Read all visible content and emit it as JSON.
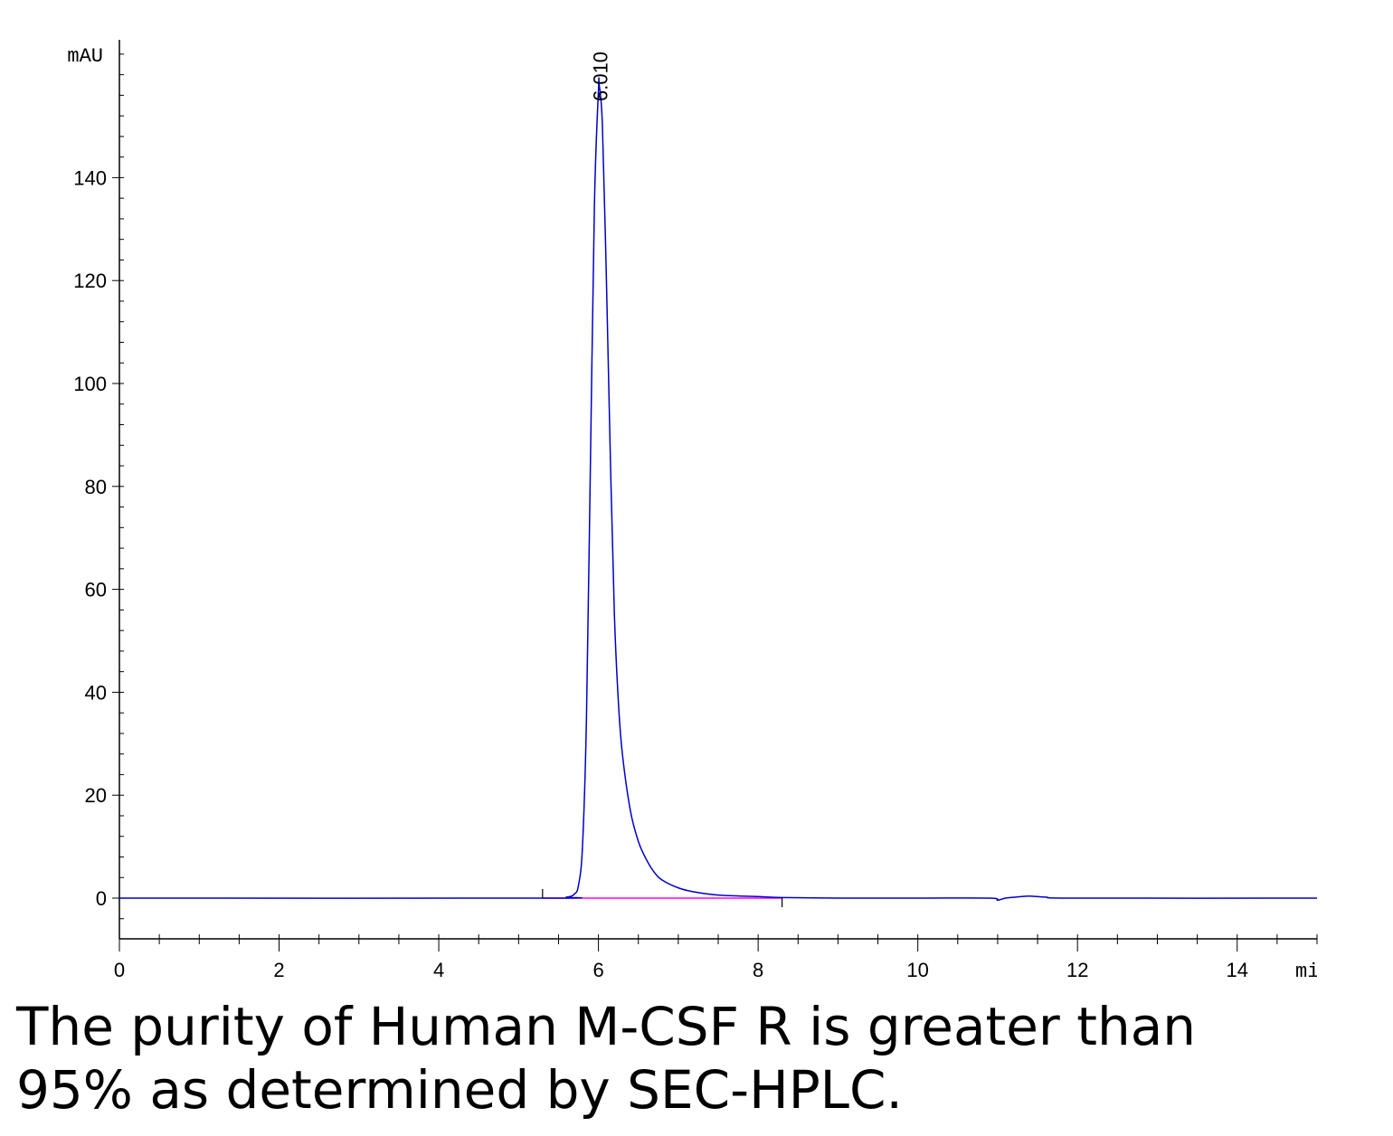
{
  "chart_data": {
    "type": "line",
    "y_unit_label": "mAU",
    "x_unit_label": "min",
    "xlim": [
      0,
      15
    ],
    "ylim": [
      -8,
      167
    ],
    "x_ticks": [
      0,
      2,
      4,
      6,
      8,
      10,
      12,
      14
    ],
    "y_ticks": [
      0,
      20,
      40,
      60,
      80,
      100,
      120,
      140
    ],
    "x_tick_labels": [
      "0",
      "2",
      "4",
      "6",
      "8",
      "10",
      "12",
      "14"
    ],
    "y_tick_labels": [
      "0",
      "20",
      "40",
      "60",
      "80",
      "100",
      "120",
      "140"
    ],
    "grid": false,
    "series": [
      {
        "color": "#0000cc",
        "x": [
          0,
          5.3,
          5.6,
          5.7,
          5.75,
          5.8,
          5.85,
          5.9,
          5.95,
          6.0,
          6.01,
          6.05,
          6.1,
          6.15,
          6.2,
          6.25,
          6.3,
          6.4,
          6.5,
          6.6,
          6.7,
          6.8,
          7.0,
          7.2,
          7.5,
          8.0,
          8.3,
          9.0,
          10.0,
          10.9,
          11.0,
          11.1,
          11.3,
          11.4,
          11.6,
          12.0,
          15.0
        ],
        "y": [
          0,
          0,
          0.2,
          0.8,
          2.5,
          10,
          35,
          85,
          135,
          157,
          158,
          150,
          120,
          85,
          55,
          38,
          28,
          17,
          11,
          7.5,
          5,
          3.5,
          2,
          1.2,
          0.6,
          0.3,
          0.1,
          0,
          0,
          0,
          -0.4,
          0,
          0.3,
          0.4,
          0.2,
          0,
          0
        ]
      }
    ],
    "baseline": {
      "color": "#ff00ff",
      "x": [
        5.3,
        8.3
      ],
      "y": [
        0,
        0
      ]
    },
    "peak_annotations": [
      {
        "x": 6.01,
        "label": "6.010"
      }
    ],
    "integration_marks": [
      5.3,
      8.3
    ]
  },
  "caption": {
    "line1": "The purity of Human M-CSF R is greater than",
    "line2": "95% as determined by SEC-HPLC."
  }
}
